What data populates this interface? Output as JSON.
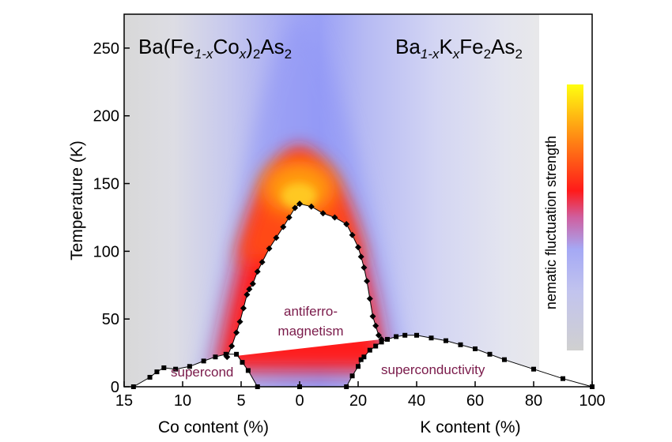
{
  "chart_data": {
    "type": "scatter",
    "title_left": {
      "base": "Ba(Fe",
      "sub1": "1-x",
      "mid": "Co",
      "sub2": "x",
      "end": ")",
      "sub3": "2",
      "end2": "As",
      "sub4": "2"
    },
    "title_right": {
      "base": "Ba",
      "sub1": "1-x",
      "mid": "K",
      "sub2": "x",
      "end": "Fe",
      "sub3": "2",
      "end2": "As",
      "sub4": "2"
    },
    "ylabel": "Temperature (K)",
    "xlabel_co": "Co content (%)",
    "xlabel_k": "K content (%)",
    "colorbar_label": "nematic fluctuation strength",
    "ylim": [
      0,
      275
    ],
    "yticks": [
      "0",
      "50",
      "100",
      "150",
      "200",
      "250"
    ],
    "co_axis": {
      "range": [
        15,
        0
      ],
      "ticks": [
        "15",
        "10",
        "5",
        "0"
      ]
    },
    "k_axis": {
      "range": [
        0,
        100
      ],
      "ticks": [
        "0",
        "20",
        "40",
        "60",
        "80",
        "100"
      ]
    },
    "annotations": {
      "afm_line1": "antiferro-",
      "afm_line2": "magnetism",
      "sc_co": "supercond",
      "sc_k": "superconductivity"
    },
    "colors": {
      "region_label": "#7a1a4a",
      "line": "#000000",
      "marker": "#000000"
    },
    "series": [
      {
        "branch": "Co",
        "x": [
          0,
          0.4,
          0.9,
          1.4,
          2.0,
          2.6,
          3.2,
          3.6,
          4.0,
          4.3,
          4.5,
          4.8,
          5.1,
          5.4,
          5.8,
          6.2
        ],
        "y": [
          135,
          132,
          125,
          118,
          110,
          102,
          92,
          85,
          76,
          72,
          68,
          58,
          48,
          40,
          30,
          22
        ]
      },
      {
        "branch": "Co",
        "x": [
          14.2,
          12.8,
          12.2,
          11.6,
          10.6,
          9.4,
          8.2,
          7.2,
          6.3,
          5.4,
          4.9,
          4.4,
          3.6,
          0
        ],
        "y": [
          0,
          7,
          11,
          14,
          13,
          15,
          19,
          22,
          24,
          24,
          18,
          12,
          0,
          0
        ]
      },
      {
        "branch": "K",
        "x": [
          0,
          4,
          8,
          12,
          16,
          18,
          20,
          21,
          22,
          23,
          24,
          25,
          26,
          27,
          28
        ],
        "y": [
          135,
          133,
          128,
          125,
          120,
          112,
          103,
          96,
          88,
          78,
          65,
          52,
          45,
          38,
          35
        ]
      },
      {
        "branch": "K",
        "x": [
          16,
          18,
          20,
          21,
          22,
          24,
          26,
          28,
          30,
          33,
          36,
          40,
          45,
          50,
          55,
          60,
          65,
          70,
          80,
          90,
          100
        ],
        "y": [
          0,
          8,
          15,
          20,
          22,
          27,
          30,
          33,
          35,
          37,
          38,
          38,
          36,
          34,
          31,
          28,
          24,
          20,
          13,
          6,
          0
        ]
      }
    ]
  }
}
